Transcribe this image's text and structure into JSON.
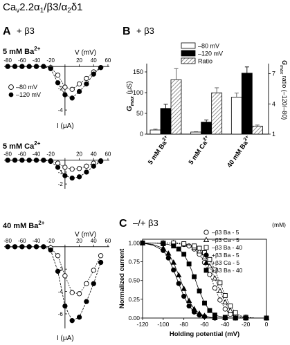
{
  "figure": {
    "title": "Ca",
    "title_sub": "v",
    "title_rest": "2.2α",
    "title_sub2": "1",
    "title_rest2": "/β3/α",
    "title_sub3": "2",
    "title_rest3": "δ1"
  },
  "panels": {
    "A": {
      "letter": "A",
      "condition": "+ β3",
      "plots": [
        {
          "label": "5 mM Ba",
          "label_sup": "2+",
          "xlabel": "V (mV)",
          "ylabel": "I (μA)"
        },
        {
          "label": "5 mM Ca",
          "label_sup": "2+"
        },
        {
          "label": "40 mM Ba",
          "label_sup": "2+",
          "xlabel": "V (mV)",
          "ylabel": "I (μA)"
        }
      ],
      "legend": [
        "–80 mV",
        "–120 mV"
      ]
    },
    "B": {
      "letter": "B",
      "condition": "+ β3"
    },
    "C": {
      "letter": "C",
      "condition": "–/+ β3"
    }
  },
  "chart_data": [
    {
      "type": "line",
      "panel": "A-top",
      "title": "5 mM Ba2+",
      "xlabel": "V (mV)",
      "ylabel": "I (μA)",
      "x_ticks": [
        -80,
        -60,
        -40,
        -20,
        0,
        20,
        40,
        60
      ],
      "y_ticks": [
        -2,
        -4
      ],
      "xlim": [
        -85,
        62
      ],
      "ylim": [
        -4.5,
        0.2
      ],
      "x": [
        -80,
        -70,
        -60,
        -50,
        -40,
        -30,
        -20,
        -10,
        0,
        10,
        20,
        30,
        40,
        50
      ],
      "series": [
        {
          "name": "–80 mV",
          "marker": "open-circle",
          "values": [
            0,
            0,
            0,
            0,
            0,
            0,
            -0.1,
            -0.8,
            -1.9,
            -2.1,
            -1.6,
            -1.1,
            -0.5,
            -0.1
          ]
        },
        {
          "name": "–120 mV",
          "marker": "filled-circle",
          "values": [
            0,
            0,
            0,
            0,
            0,
            0,
            -0.2,
            -1.5,
            -2.6,
            -2.9,
            -2.3,
            -1.6,
            -0.7,
            -0.1
          ]
        }
      ]
    },
    {
      "type": "line",
      "panel": "A-middle",
      "title": "5 mM Ca2+",
      "x_ticks": [
        -80,
        -60,
        -40,
        -20,
        0,
        20,
        40,
        60
      ],
      "y_ticks": [
        -1,
        -2
      ],
      "xlim": [
        -85,
        62
      ],
      "ylim": [
        -2.4,
        0.1
      ],
      "x": [
        -80,
        -70,
        -60,
        -50,
        -40,
        -30,
        -20,
        -10,
        0,
        10,
        20,
        30,
        40,
        50
      ],
      "series": [
        {
          "name": "–80 mV",
          "marker": "open-circle",
          "values": [
            0,
            0,
            0,
            0,
            0,
            0,
            -0.05,
            -0.25,
            -0.6,
            -0.75,
            -0.7,
            -0.5,
            -0.25,
            -0.05
          ]
        },
        {
          "name": "–120 mV",
          "marker": "filled-circle",
          "values": [
            0,
            0,
            0,
            0,
            0,
            0,
            -0.1,
            -0.6,
            -1.3,
            -1.5,
            -1.4,
            -1.0,
            -0.5,
            -0.1
          ]
        }
      ]
    },
    {
      "type": "line",
      "panel": "A-bottom",
      "title": "40 mM Ba2+",
      "xlabel": "V (mV)",
      "ylabel": "I (μA)",
      "x_ticks": [
        -80,
        -60,
        -40,
        -20,
        0,
        20,
        40,
        60
      ],
      "y_ticks": [
        -2,
        -4,
        -6
      ],
      "xlim": [
        -85,
        62
      ],
      "ylim": [
        -7.3,
        0.3
      ],
      "x": [
        -80,
        -70,
        -60,
        -50,
        -40,
        -30,
        -20,
        -10,
        0,
        10,
        20,
        30,
        40,
        50
      ],
      "series": [
        {
          "name": "–80 mV",
          "marker": "open-circle",
          "values": [
            0,
            0,
            0,
            0,
            0,
            0,
            -0.1,
            -0.8,
            -2.6,
            -4.1,
            -4.2,
            -3.3,
            -2.1,
            -0.8
          ]
        },
        {
          "name": "–120 mV",
          "marker": "filled-circle",
          "values": [
            0,
            0,
            0,
            0,
            0,
            0,
            -0.3,
            -2.2,
            -5.3,
            -6.6,
            -6.3,
            -4.9,
            -3.3,
            -1.4
          ]
        }
      ]
    },
    {
      "type": "bar",
      "panel": "B",
      "categories": [
        "5 mM Ba",
        "5 mM Ca",
        "40 mM Ba"
      ],
      "category_sup": "2+",
      "ylabel": "G",
      "ylabel_sub": "max",
      "ylabel_unit": "(μS)",
      "ylabel_right": "G",
      "ylabel_right_sub": "max",
      "ylabel_right_rest": "ratio (–120/–80)",
      "ylim": [
        0,
        170
      ],
      "y_ticks": [
        0,
        50,
        100,
        150
      ],
      "ylim_right": [
        1,
        8
      ],
      "y_ticks_right": [
        1,
        4,
        7
      ],
      "series": [
        {
          "name": "–80 mV",
          "fill": "#ffffff",
          "axis": "left",
          "values": [
            10,
            5,
            89
          ],
          "errors": [
            2,
            1,
            10
          ]
        },
        {
          "name": "–120 mV",
          "fill": "#000000",
          "axis": "left",
          "values": [
            62,
            29,
            147
          ],
          "errors": [
            10,
            5,
            15
          ]
        },
        {
          "name": "Ratio",
          "fill": "hatched",
          "axis": "right",
          "values": [
            6.4,
            5.1,
            1.8
          ],
          "errors": [
            1.1,
            0.5,
            0.1
          ]
        }
      ]
    },
    {
      "type": "line",
      "panel": "C",
      "xlabel": "Holding potential (mV)",
      "ylabel": "Normalized current",
      "x_ticks": [
        -120,
        -100,
        -80,
        -60,
        -40,
        -20,
        0
      ],
      "y_ticks": [
        0.0,
        0.25,
        0.5,
        0.75,
        1.0
      ],
      "xlim": [
        -120,
        0
      ],
      "ylim": [
        0,
        1.05
      ],
      "legend_unit": "(mM)",
      "x": [
        -120,
        -110,
        -100,
        -95,
        -90,
        -85,
        -80,
        -75,
        -70,
        -65,
        -60,
        -55,
        -50,
        -45,
        -40,
        -35,
        -30,
        -25,
        -20,
        -10,
        0
      ],
      "series": [
        {
          "name": "–β3  Ba - 5",
          "marker": "open-circle",
          "values": [
            1.0,
            1.0,
            1.0,
            1.0,
            1.0,
            0.99,
            0.98,
            0.96,
            0.92,
            0.85,
            0.74,
            0.58,
            0.4,
            0.24,
            0.12,
            0.05,
            0.02,
            0.01,
            0.0,
            0.0,
            0.0
          ]
        },
        {
          "name": "–β3  Ca - 5",
          "marker": "open-triangle",
          "values": [
            1.0,
            1.0,
            1.0,
            1.0,
            1.0,
            0.99,
            0.98,
            0.97,
            0.94,
            0.89,
            0.81,
            0.69,
            0.53,
            0.36,
            0.21,
            0.1,
            0.04,
            0.02,
            0.01,
            0.0,
            0.0
          ]
        },
        {
          "name": "–β3  Ba - 40",
          "marker": "open-square",
          "values": [
            1.0,
            1.0,
            1.0,
            1.0,
            1.0,
            1.0,
            0.99,
            0.98,
            0.96,
            0.93,
            0.87,
            0.78,
            0.64,
            0.47,
            0.3,
            0.16,
            0.07,
            0.03,
            0.01,
            0.0,
            0.0
          ]
        },
        {
          "name": "+β3  Ba - 5",
          "marker": "filled-circle",
          "values": [
            1.0,
            0.97,
            0.9,
            0.8,
            0.64,
            0.46,
            0.29,
            0.16,
            0.08,
            0.04,
            0.02,
            0.01,
            0.0,
            0.0,
            0.0,
            0.0,
            0.0,
            0.0,
            0.0,
            0.0,
            0.0
          ]
        },
        {
          "name": "+β3  Ca - 5",
          "marker": "filled-triangle",
          "values": [
            1.0,
            0.98,
            0.93,
            0.86,
            0.74,
            0.57,
            0.39,
            0.23,
            0.12,
            0.06,
            0.03,
            0.01,
            0.0,
            0.0,
            0.0,
            0.0,
            0.0,
            0.0,
            0.0,
            0.0,
            0.0
          ]
        },
        {
          "name": "+β3  Ba - 40",
          "marker": "filled-square",
          "values": [
            1.0,
            1.0,
            0.99,
            0.98,
            0.96,
            0.92,
            0.85,
            0.72,
            0.55,
            0.36,
            0.2,
            0.1,
            0.04,
            0.02,
            0.01,
            0.0,
            0.0,
            0.0,
            0.0,
            0.0,
            0.0
          ]
        }
      ]
    }
  ]
}
